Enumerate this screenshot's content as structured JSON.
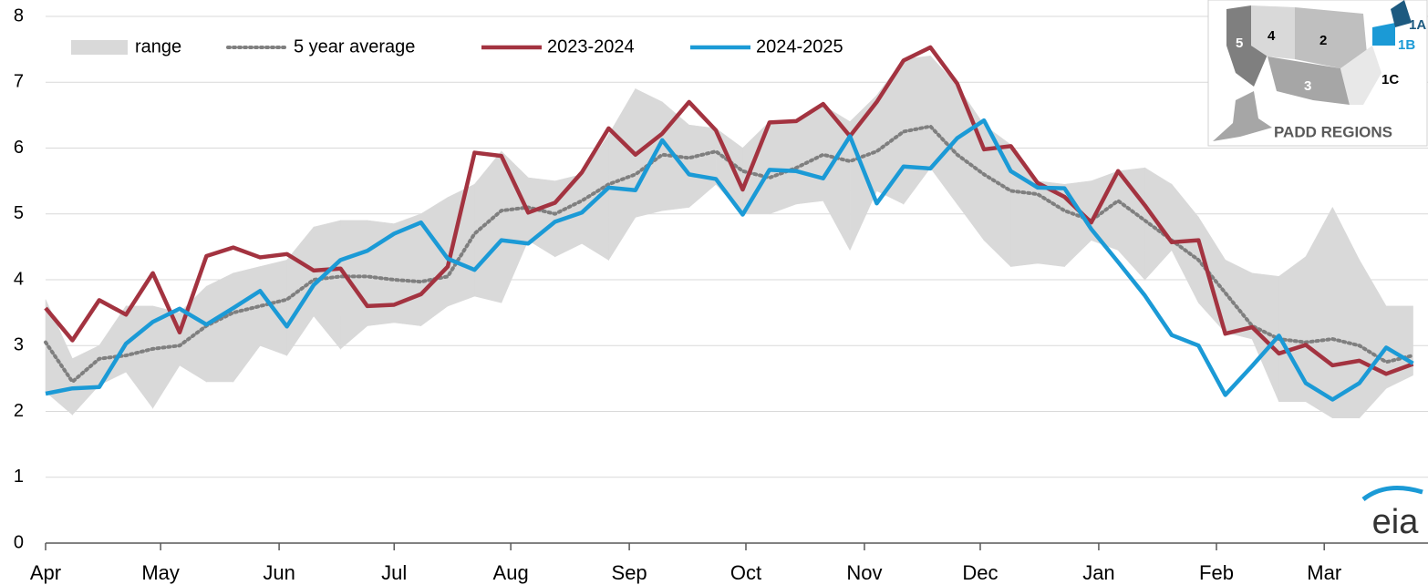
{
  "chart_data": {
    "type": "line",
    "xlim": [
      0,
      51.56
    ],
    "xticks": [
      {
        "value": 0,
        "label": "Apr"
      },
      {
        "value": 4.29,
        "label": "May"
      },
      {
        "value": 8.71,
        "label": "Jun"
      },
      {
        "value": 13.0,
        "label": "Jul"
      },
      {
        "value": 17.35,
        "label": "Aug"
      },
      {
        "value": 21.77,
        "label": "Sep"
      },
      {
        "value": 26.12,
        "label": "Oct"
      },
      {
        "value": 30.54,
        "label": "Nov"
      },
      {
        "value": 34.86,
        "label": "Dec"
      },
      {
        "value": 39.28,
        "label": "Jan"
      },
      {
        "value": 43.67,
        "label": "Feb"
      },
      {
        "value": 47.69,
        "label": "Mar"
      }
    ],
    "x": [
      0,
      1,
      2,
      3,
      4,
      5,
      6,
      7,
      8,
      9,
      10,
      11,
      12,
      13,
      14,
      15,
      16,
      17,
      18,
      19,
      20,
      21,
      22,
      23,
      24,
      25,
      26,
      27,
      28,
      29,
      30,
      31,
      32,
      33,
      34,
      35,
      36,
      37,
      38,
      39,
      40,
      41,
      42,
      43,
      44,
      45,
      46,
      47,
      48,
      49,
      50,
      51
    ],
    "ylim": [
      0,
      8
    ],
    "yticks": [
      0,
      1,
      2,
      3,
      4,
      5,
      6,
      7,
      8
    ],
    "grid": true,
    "range": {
      "name": "range",
      "color": "#d9d9d9",
      "upper": [
        3.7,
        2.8,
        3.0,
        3.6,
        3.6,
        3.5,
        3.9,
        4.1,
        4.2,
        4.3,
        4.8,
        4.9,
        4.9,
        4.85,
        5.0,
        5.25,
        5.45,
        5.95,
        5.55,
        5.5,
        5.6,
        6.2,
        6.9,
        6.7,
        6.35,
        6.3,
        6.0,
        6.4,
        6.4,
        6.65,
        6.4,
        6.8,
        7.35,
        7.4,
        6.95,
        6.35,
        6.05,
        5.5,
        5.45,
        5.5,
        5.65,
        5.7,
        5.45,
        4.95,
        4.3,
        4.1,
        4.05,
        4.35,
        5.1,
        4.3,
        3.6,
        3.6
      ],
      "lower": [
        2.3,
        1.95,
        2.4,
        2.6,
        2.05,
        2.7,
        2.45,
        2.45,
        3.0,
        2.85,
        3.45,
        2.95,
        3.3,
        3.35,
        3.3,
        3.6,
        3.75,
        3.65,
        4.6,
        4.35,
        4.55,
        4.3,
        4.95,
        5.05,
        5.1,
        5.45,
        5.0,
        5.0,
        5.15,
        5.2,
        4.45,
        5.35,
        5.15,
        5.7,
        5.15,
        4.6,
        4.2,
        4.25,
        4.2,
        4.6,
        4.45,
        4.0,
        4.45,
        3.65,
        3.2,
        3.1,
        2.15,
        2.15,
        1.9,
        1.9,
        2.35,
        2.55
      ]
    },
    "series": [
      {
        "name": "5 year average",
        "color": "#7f7f7f",
        "dashed": true,
        "values": [
          3.05,
          2.45,
          2.8,
          2.85,
          2.95,
          3.0,
          3.3,
          3.5,
          3.6,
          3.7,
          4.0,
          4.05,
          4.05,
          4.0,
          3.97,
          4.05,
          4.7,
          5.05,
          5.1,
          5.0,
          5.2,
          5.45,
          5.6,
          5.9,
          5.85,
          5.95,
          5.65,
          5.55,
          5.7,
          5.9,
          5.8,
          5.95,
          6.25,
          6.33,
          5.9,
          5.6,
          5.35,
          5.3,
          5.05,
          4.9,
          5.2,
          4.9,
          4.6,
          4.3,
          3.8,
          3.3,
          3.1,
          3.05,
          3.1,
          3.0,
          2.75,
          2.85
        ]
      },
      {
        "name": "2023-2024",
        "color": "#a33340",
        "values": [
          3.57,
          3.08,
          3.69,
          3.47,
          4.1,
          3.2,
          4.36,
          4.49,
          4.34,
          4.39,
          4.14,
          4.17,
          3.6,
          3.62,
          3.78,
          4.2,
          5.93,
          5.88,
          5.02,
          5.17,
          5.63,
          6.3,
          5.9,
          6.22,
          6.7,
          6.27,
          5.37,
          6.39,
          6.41,
          6.67,
          6.18,
          6.7,
          7.33,
          7.53,
          6.98,
          5.98,
          6.03,
          5.47,
          5.26,
          4.87,
          5.65,
          5.13,
          4.57,
          4.6,
          3.18,
          3.28,
          2.88,
          3.01,
          2.7,
          2.77,
          2.57,
          2.72
        ]
      },
      {
        "name": "2024-2025",
        "color": "#1b9ad6",
        "values": [
          2.27,
          2.35,
          2.37,
          3.03,
          3.36,
          3.56,
          3.32,
          3.57,
          3.83,
          3.29,
          3.92,
          4.3,
          4.44,
          4.7,
          4.87,
          4.32,
          4.15,
          4.6,
          4.55,
          4.88,
          5.02,
          5.4,
          5.36,
          6.12,
          5.6,
          5.53,
          4.99,
          5.67,
          5.65,
          5.54,
          6.18,
          5.16,
          5.72,
          5.69,
          6.15,
          6.42,
          5.65,
          5.4,
          5.39,
          4.77,
          4.27,
          3.76,
          3.16,
          3.0,
          2.25,
          2.69,
          3.15,
          2.43,
          2.18,
          2.43,
          2.97,
          2.73
        ]
      }
    ],
    "inset": {
      "title": "PADD REGIONS",
      "labels": [
        "1A",
        "1B",
        "1C",
        "2",
        "3",
        "4",
        "5"
      ]
    },
    "logo": "eia"
  }
}
